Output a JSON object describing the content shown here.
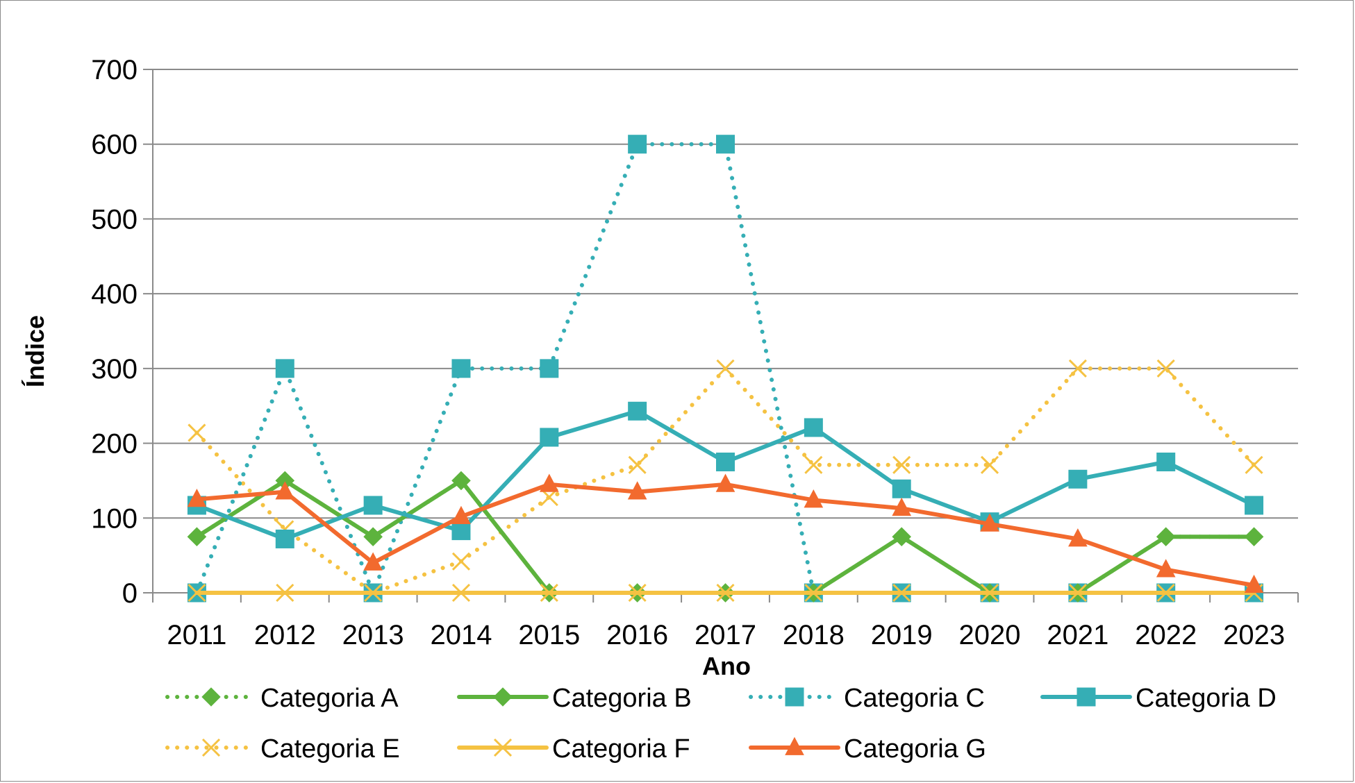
{
  "chart_data": {
    "type": "line",
    "title": "",
    "xlabel": "Ano",
    "ylabel": "Índice",
    "ylim": [
      0,
      700
    ],
    "yticks": [
      0,
      100,
      200,
      300,
      400,
      500,
      600,
      700
    ],
    "grid": true,
    "legend_position": "bottom",
    "categories": [
      "2011",
      "2012",
      "2013",
      "2014",
      "2015",
      "2016",
      "2017",
      "2018",
      "2019",
      "2020",
      "2021",
      "2022",
      "2023"
    ],
    "series": [
      {
        "name": "Categoria A",
        "color": "#5db33d",
        "style": "dotted",
        "marker": "diamond",
        "values": [
          75,
          150,
          75,
          150,
          0,
          0,
          0,
          0,
          75,
          0,
          0,
          75,
          75
        ]
      },
      {
        "name": "Categoria B",
        "color": "#5db33d",
        "style": "solid",
        "marker": "diamond",
        "values": [
          75,
          150,
          75,
          150,
          0,
          0,
          0,
          0,
          75,
          0,
          0,
          75,
          75
        ]
      },
      {
        "name": "Categoria C",
        "color": "#35aeb5",
        "style": "dotted",
        "marker": "square",
        "values": [
          0,
          300,
          0,
          300,
          300,
          600,
          600,
          0,
          0,
          0,
          0,
          0,
          0
        ]
      },
      {
        "name": "Categoria D",
        "color": "#35aeb5",
        "style": "solid",
        "marker": "square",
        "values": [
          117,
          72,
          117,
          83,
          208,
          243,
          175,
          221,
          139,
          95,
          152,
          175,
          117
        ]
      },
      {
        "name": "Categoria E",
        "color": "#f5c242",
        "style": "dotted",
        "marker": "x",
        "values": [
          214,
          85,
          0,
          42,
          128,
          171,
          300,
          171,
          171,
          171,
          300,
          300,
          171
        ]
      },
      {
        "name": "Categoria F",
        "color": "#f5c242",
        "style": "solid",
        "marker": "x",
        "values": [
          0,
          0,
          0,
          0,
          0,
          0,
          0,
          0,
          0,
          0,
          0,
          0,
          0
        ]
      },
      {
        "name": "Categoria G",
        "color": "#f26a2e",
        "style": "solid",
        "marker": "triangle",
        "values": [
          125,
          135,
          40,
          102,
          145,
          135,
          145,
          124,
          113,
          92,
          72,
          31,
          10
        ]
      }
    ]
  }
}
